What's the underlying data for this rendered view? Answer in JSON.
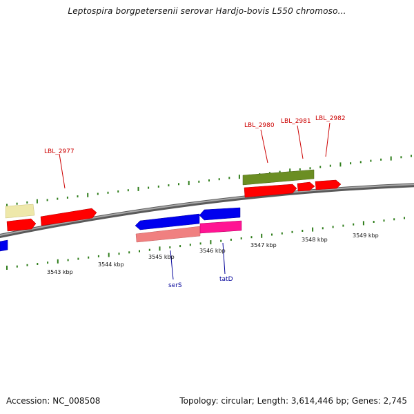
{
  "title": "Leptospira borgpetersenii serovar Hardjo-bovis L550 chromoso...",
  "footer": {
    "accession": "Accession: NC_008508",
    "topology": "Topology: circular; Length: 3,614,446 bp; Genes: 2,745"
  },
  "tick_labels": [
    "3543 kbp",
    "3544 kbp",
    "3545 kbp",
    "3546 kbp",
    "3547 kbp",
    "3548 kbp",
    "3549 kbp"
  ],
  "gene_labels": {
    "lbl_2977": "LBL_2977",
    "lbl_2980": "LBL_2980",
    "lbl_2981": "LBL_2981",
    "lbl_2982": "LBL_2982",
    "serS": "serS",
    "tatD": "tatD"
  },
  "colors": {
    "tick": "#2e7d1a",
    "backbone": "#808080",
    "red_gene": "#ff0000",
    "blue_gene": "#0000ee",
    "pink_gene": "#ff1493",
    "salmon_gene": "#f08080",
    "olive_gene": "#6b8e23",
    "yellow_gene": "#eee8aa"
  }
}
